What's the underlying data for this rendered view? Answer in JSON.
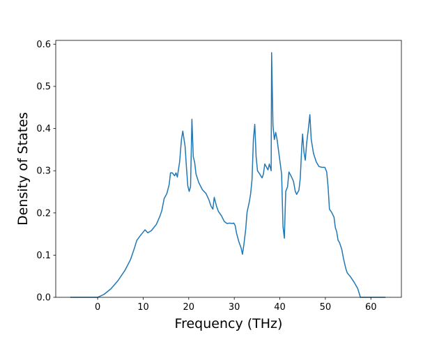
{
  "chart_data": {
    "type": "line",
    "xlabel": "Frequency (THz)",
    "ylabel": "Density of States",
    "color": "#1f77b4",
    "x": [
      -6,
      0,
      1.4,
      2.9,
      4.5,
      6,
      7.2,
      8,
      8.6,
      9.5,
      10.4,
      11,
      11.8,
      12.9,
      13.7,
      14.1,
      14.6,
      15.2,
      15.7,
      16,
      16.4,
      16.9,
      17.2,
      17.5,
      18,
      18.4,
      18.7,
      19.2,
      19.5,
      19.8,
      20.1,
      20.4,
      20.7,
      21,
      21.3,
      21.6,
      22.2,
      23,
      23.8,
      24.4,
      24.9,
      25.3,
      25.6,
      26.1,
      26.5,
      27.2,
      27.8,
      28.4,
      29,
      29.5,
      29.9,
      30.2,
      30.5,
      31,
      31.5,
      31.8,
      32.1,
      32.5,
      32.8,
      33.3,
      33.6,
      33.9,
      34.2,
      34.5,
      34.8,
      35.1,
      35.6,
      36.1,
      36.4,
      36.7,
      37.1,
      37.4,
      37.7,
      38.1,
      38.2,
      38.5,
      38.8,
      39.1,
      39.4,
      39.9,
      40.4,
      40.7,
      41,
      41.3,
      41.7,
      42,
      42.5,
      43,
      43.4,
      43.7,
      44.2,
      44.5,
      44.8,
      45,
      45.3,
      45.6,
      45.9,
      46.3,
      46.6,
      46.9,
      47.4,
      48,
      48.6,
      49.3,
      49.9,
      50.3,
      50.6,
      50.9,
      51.4,
      51.9,
      52.2,
      52.5,
      52.8,
      53.1,
      53.6,
      54,
      54.5,
      54.8,
      55.5,
      56.3,
      57.1,
      57.7,
      63.2
    ],
    "values": [
      0,
      0,
      0.007,
      0.02,
      0.04,
      0.064,
      0.089,
      0.114,
      0.135,
      0.148,
      0.16,
      0.153,
      0.158,
      0.173,
      0.193,
      0.206,
      0.234,
      0.246,
      0.267,
      0.295,
      0.295,
      0.288,
      0.295,
      0.285,
      0.321,
      0.374,
      0.394,
      0.358,
      0.308,
      0.264,
      0.251,
      0.262,
      0.422,
      0.333,
      0.32,
      0.292,
      0.272,
      0.255,
      0.246,
      0.232,
      0.216,
      0.209,
      0.237,
      0.216,
      0.204,
      0.193,
      0.18,
      0.175,
      0.176,
      0.175,
      0.176,
      0.17,
      0.152,
      0.132,
      0.117,
      0.102,
      0.124,
      0.16,
      0.201,
      0.226,
      0.246,
      0.279,
      0.374,
      0.41,
      0.333,
      0.3,
      0.292,
      0.283,
      0.292,
      0.316,
      0.308,
      0.302,
      0.316,
      0.3,
      0.58,
      0.407,
      0.374,
      0.391,
      0.374,
      0.333,
      0.292,
      0.168,
      0.14,
      0.251,
      0.262,
      0.297,
      0.287,
      0.275,
      0.251,
      0.244,
      0.254,
      0.283,
      0.353,
      0.387,
      0.344,
      0.325,
      0.366,
      0.402,
      0.433,
      0.374,
      0.341,
      0.321,
      0.31,
      0.308,
      0.308,
      0.297,
      0.262,
      0.209,
      0.201,
      0.19,
      0.165,
      0.155,
      0.135,
      0.13,
      0.114,
      0.091,
      0.068,
      0.058,
      0.049,
      0.036,
      0.021,
      0,
      0
    ],
    "xlim": [
      -9.2,
      66.7
    ],
    "ylim": [
      0,
      0.609
    ],
    "xticks": [
      0,
      10,
      20,
      30,
      40,
      50,
      60
    ],
    "yticks": [
      {
        "value": 0,
        "label": "0.0"
      },
      0.1,
      0.2,
      0.3,
      0.4,
      0.5,
      0.6
    ]
  }
}
